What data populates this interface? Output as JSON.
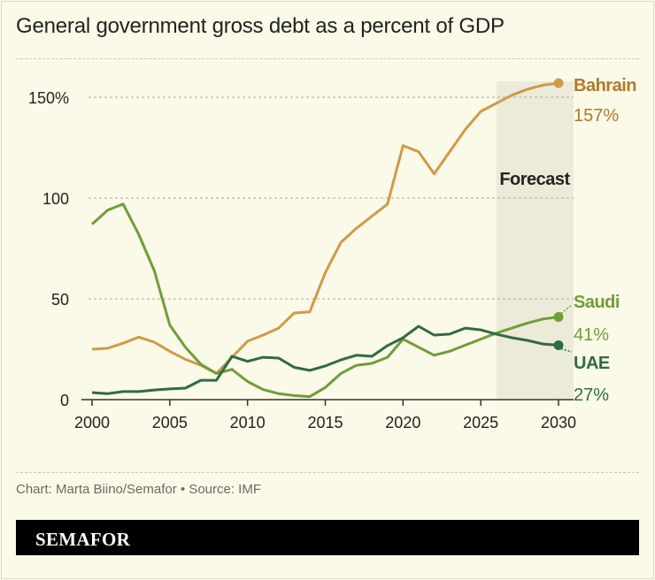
{
  "title": "General government gross debt as a percent of GDP",
  "credit": "Chart: Marta Biino/Semafor • Source: IMF",
  "brand": "SEMAFOR",
  "chart_data": {
    "type": "line",
    "title": "General government gross debt as a percent of GDP",
    "xlabel": "",
    "ylabel": "",
    "xlim": [
      2000,
      2030
    ],
    "ylim": [
      0,
      160
    ],
    "x_ticks": [
      "2000",
      "2005",
      "2010",
      "2015",
      "2020",
      "2025",
      "2030"
    ],
    "y_ticks": [
      {
        "value": 0,
        "label": "0"
      },
      {
        "value": 50,
        "label": "50"
      },
      {
        "value": 100,
        "label": "100"
      },
      {
        "value": 150,
        "label": "150%"
      }
    ],
    "grid": "horizontal dashed",
    "forecast": {
      "label": "Forecast",
      "from": 2026,
      "to": 2030,
      "color": "#ecead9"
    },
    "x": [
      2000,
      2001,
      2002,
      2003,
      2004,
      2005,
      2006,
      2007,
      2008,
      2009,
      2010,
      2011,
      2012,
      2013,
      2014,
      2015,
      2016,
      2017,
      2018,
      2019,
      2020,
      2021,
      2022,
      2023,
      2024,
      2025,
      2026,
      2027,
      2028,
      2029,
      2030
    ],
    "series": [
      {
        "name": "Bahrain",
        "end_label": "157%",
        "color": "#d09a48",
        "label_color": "#b07a2a",
        "values": [
          25,
          25.5,
          28,
          31,
          28.5,
          24,
          20,
          17,
          13,
          21,
          29,
          32,
          35.5,
          43,
          43.5,
          63,
          78,
          85,
          91,
          97,
          126,
          123,
          112,
          123,
          134,
          143,
          147,
          151,
          154,
          156,
          157
        ]
      },
      {
        "name": "Saudi",
        "end_label": "41%",
        "color": "#6e9e3a",
        "label_color": "#6e9e3a",
        "values": [
          87,
          94,
          97,
          82,
          64,
          37,
          26,
          17.5,
          13,
          15,
          9,
          5,
          3,
          2,
          1.5,
          6,
          13,
          17,
          18,
          21,
          30,
          26,
          22,
          24,
          27,
          30,
          33,
          35.5,
          38,
          40,
          41
        ]
      },
      {
        "name": "UAE",
        "end_label": "27%",
        "color": "#2f6b43",
        "label_color": "#2f6b43",
        "values": [
          3.5,
          3,
          4,
          4,
          4.8,
          5.3,
          5.7,
          9.6,
          9.6,
          21.5,
          19,
          21,
          20.6,
          16,
          14.5,
          16.7,
          19.7,
          22,
          21.5,
          26.8,
          30.7,
          36.4,
          32,
          32.5,
          35.5,
          34.6,
          32.5,
          30.7,
          29.4,
          27.6,
          27
        ]
      }
    ]
  }
}
